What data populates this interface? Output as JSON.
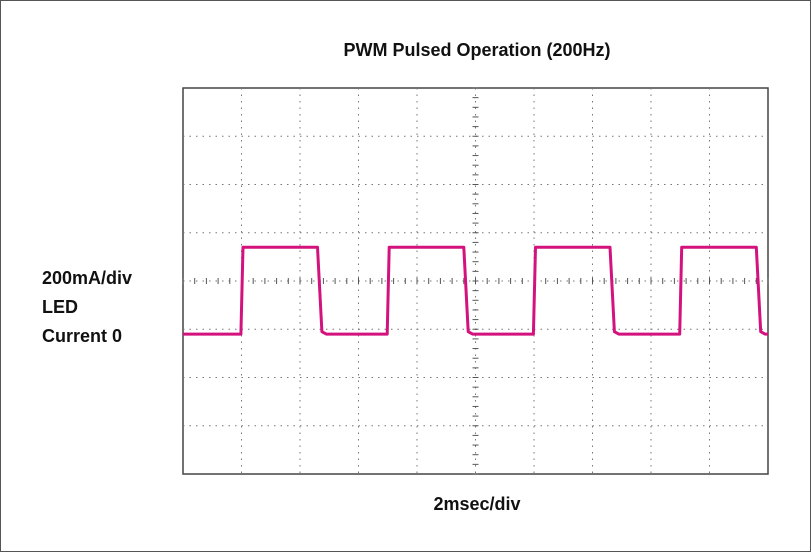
{
  "chart_data": {
    "type": "line",
    "title": "PWM Pulsed Operation (200Hz)",
    "y_label_lines": [
      "200mA/div",
      "LED",
      "Current 0"
    ],
    "x_label": "2msec/div",
    "x": [
      0,
      1.98,
      2.05,
      4.6,
      4.75,
      4.9,
      6.98,
      7.05,
      9.6,
      9.75,
      9.9,
      11.98,
      12.05,
      14.6,
      14.75,
      14.9,
      16.98,
      17.05,
      19.6,
      19.75,
      19.9,
      20
    ],
    "values": [
      0,
      0,
      360,
      360,
      10,
      0,
      0,
      360,
      360,
      10,
      0,
      0,
      360,
      360,
      10,
      0,
      0,
      360,
      360,
      10,
      0,
      0
    ],
    "color": "#d4127e",
    "xlim": [
      0,
      20
    ],
    "ylim": [
      -580,
      1020
    ],
    "grid": true
  }
}
